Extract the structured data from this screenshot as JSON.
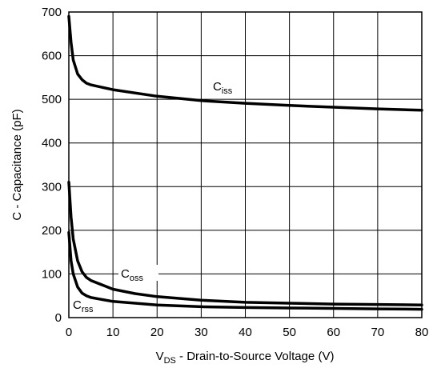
{
  "chart_data": {
    "type": "line",
    "xlabel": {
      "main": "V",
      "sub": "DS",
      "rest": " - Drain-to-Source Voltage (V)"
    },
    "ylabel": "C - Capacitance (pF)",
    "xlim": [
      0,
      80
    ],
    "ylim": [
      0,
      700
    ],
    "xticks": [
      "0",
      "10",
      "20",
      "30",
      "40",
      "50",
      "60",
      "70",
      "80"
    ],
    "yticks": [
      "0",
      "100",
      "200",
      "300",
      "400",
      "500",
      "600",
      "700"
    ],
    "grid": true,
    "series": [
      {
        "name": {
          "main": "C",
          "sub": "iss"
        },
        "x": [
          0,
          0.5,
          1,
          2,
          3,
          4,
          5,
          10,
          20,
          30,
          40,
          50,
          60,
          70,
          80
        ],
        "y": [
          690,
          630,
          590,
          558,
          545,
          537,
          533,
          522,
          507,
          497,
          491,
          486,
          482,
          478,
          475
        ]
      },
      {
        "name": {
          "main": "C",
          "sub": "oss"
        },
        "x": [
          0,
          0.5,
          1,
          2,
          3,
          4,
          5,
          10,
          15,
          20,
          30,
          40,
          50,
          60,
          70,
          80
        ],
        "y": [
          310,
          230,
          180,
          130,
          105,
          92,
          85,
          65,
          55,
          48,
          40,
          35,
          33,
          31,
          30,
          29
        ]
      },
      {
        "name": {
          "main": "C",
          "sub": "rss"
        },
        "x": [
          0,
          0.5,
          1,
          2,
          3,
          4,
          5,
          10,
          20,
          30,
          40,
          50,
          60,
          70,
          80
        ],
        "y": [
          195,
          130,
          100,
          70,
          56,
          50,
          46,
          37,
          29,
          25,
          23,
          22,
          21,
          20,
          19
        ]
      }
    ]
  }
}
